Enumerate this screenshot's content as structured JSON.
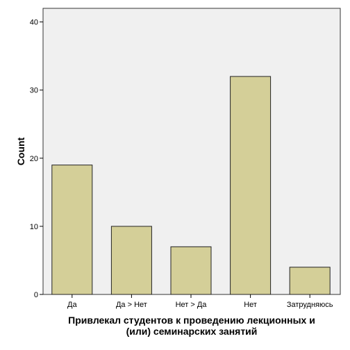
{
  "chart_data": {
    "type": "bar",
    "categories": [
      "Да",
      "Да > Нет",
      "Нет > Да",
      "Нет",
      "Затрудняюсь"
    ],
    "values": [
      19,
      10,
      7,
      32,
      4
    ],
    "xlabel_lines": [
      "Привлекал студентов к проведению лекционных и",
      "(или) семинарских занятий"
    ],
    "ylabel": "Count",
    "ylim": [
      0,
      42
    ],
    "yticks": [
      0,
      10,
      20,
      30,
      40
    ],
    "grid": false,
    "colors": {
      "bar_fill": "#d4cf98",
      "bar_stroke": "#222222",
      "plot_background": "#f0f0f0",
      "page_background": "#ffffff"
    }
  }
}
